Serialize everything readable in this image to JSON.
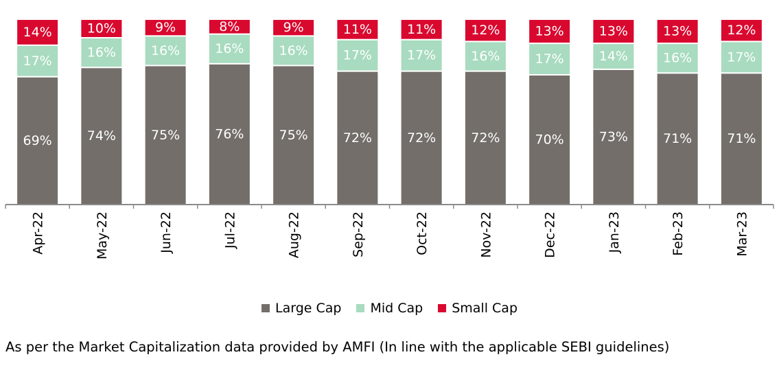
{
  "chart_data": {
    "type": "bar",
    "stacked": true,
    "categories": [
      "Apr-22",
      "May-22",
      "Jun-22",
      "Jul-22",
      "Aug-22",
      "Sep-22",
      "Oct-22",
      "Nov-22",
      "Dec-22",
      "Jan-23",
      "Feb-23",
      "Mar-23"
    ],
    "series": [
      {
        "name": "Large Cap",
        "color": "#736e69",
        "label_color": "#ffffff",
        "values": [
          69,
          74,
          75,
          76,
          75,
          72,
          72,
          72,
          70,
          73,
          71,
          71
        ]
      },
      {
        "name": "Mid Cap",
        "color": "#a8dbbf",
        "label_color": "#ffffff",
        "values": [
          17,
          16,
          16,
          16,
          16,
          17,
          17,
          16,
          17,
          14,
          16,
          17
        ]
      },
      {
        "name": "Small Cap",
        "color": "#d9082f",
        "label_color": "#ffffff",
        "values": [
          14,
          10,
          9,
          8,
          9,
          11,
          11,
          12,
          13,
          13,
          13,
          12
        ]
      }
    ],
    "value_suffix": "%",
    "ylim": [
      0,
      100
    ],
    "grid": false,
    "legend_position": "bottom-center"
  },
  "footnote": "As per the Market Capitalization data provided by AMFI (In line with the applicable SEBI guidelines)"
}
